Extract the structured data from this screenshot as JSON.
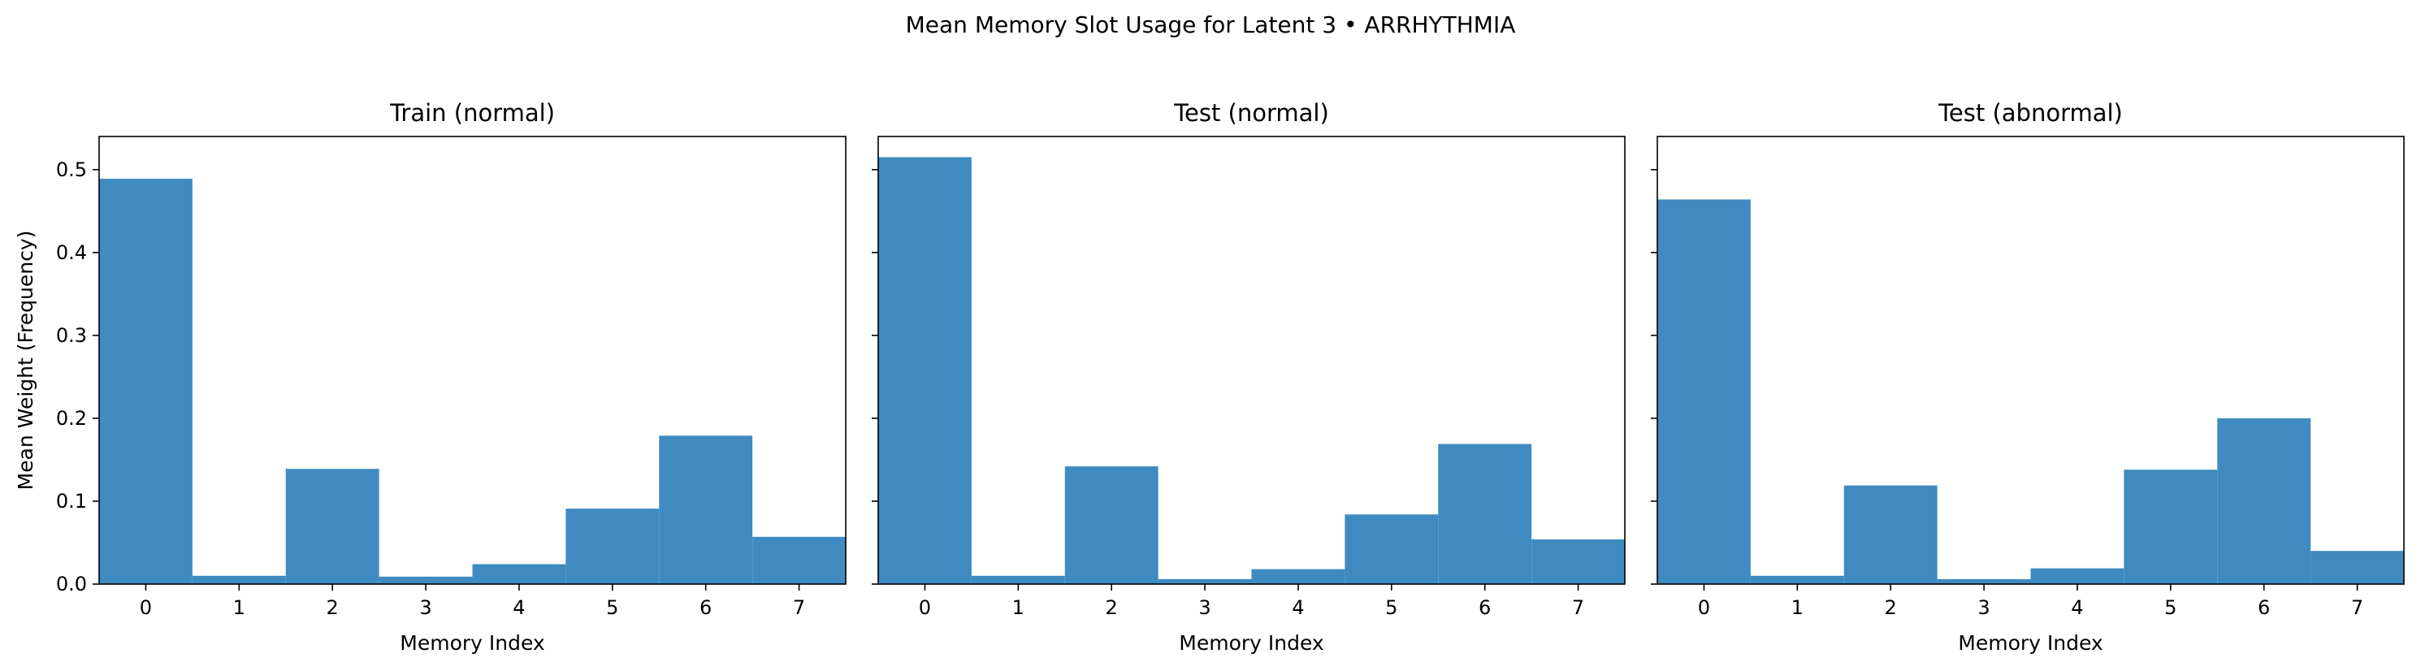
{
  "title": "Mean Memory Slot Usage for Latent 3 • ARRHYTHMIA",
  "colors": {
    "bar": "#3f8bc1",
    "axis": "#000000",
    "background": "#ffffff"
  },
  "chart_data": [
    {
      "type": "bar",
      "title": "Train (normal)",
      "xlabel": "Memory Index",
      "ylabel": "Mean Weight (Frequency)",
      "categories": [
        "0",
        "1",
        "2",
        "3",
        "4",
        "5",
        "6",
        "7"
      ],
      "values": [
        0.489,
        0.01,
        0.139,
        0.009,
        0.024,
        0.091,
        0.179,
        0.057
      ],
      "ylim": [
        0,
        0.54
      ],
      "yticks": [
        "0.0",
        "0.1",
        "0.2",
        "0.3",
        "0.4",
        "0.5"
      ],
      "grid": false
    },
    {
      "type": "bar",
      "title": "Test (normal)",
      "xlabel": "Memory Index",
      "ylabel": "",
      "categories": [
        "0",
        "1",
        "2",
        "3",
        "4",
        "5",
        "6",
        "7"
      ],
      "values": [
        0.515,
        0.01,
        0.142,
        0.006,
        0.018,
        0.084,
        0.169,
        0.054
      ],
      "ylim": [
        0,
        0.54
      ],
      "yticks": [
        "0.0",
        "0.1",
        "0.2",
        "0.3",
        "0.4",
        "0.5"
      ],
      "grid": false
    },
    {
      "type": "bar",
      "title": "Test (abnormal)",
      "xlabel": "Memory Index",
      "ylabel": "",
      "categories": [
        "0",
        "1",
        "2",
        "3",
        "4",
        "5",
        "6",
        "7"
      ],
      "values": [
        0.464,
        0.01,
        0.119,
        0.006,
        0.019,
        0.138,
        0.2,
        0.04
      ],
      "ylim": [
        0,
        0.54
      ],
      "yticks": [
        "0.0",
        "0.1",
        "0.2",
        "0.3",
        "0.4",
        "0.5"
      ],
      "grid": false
    }
  ]
}
